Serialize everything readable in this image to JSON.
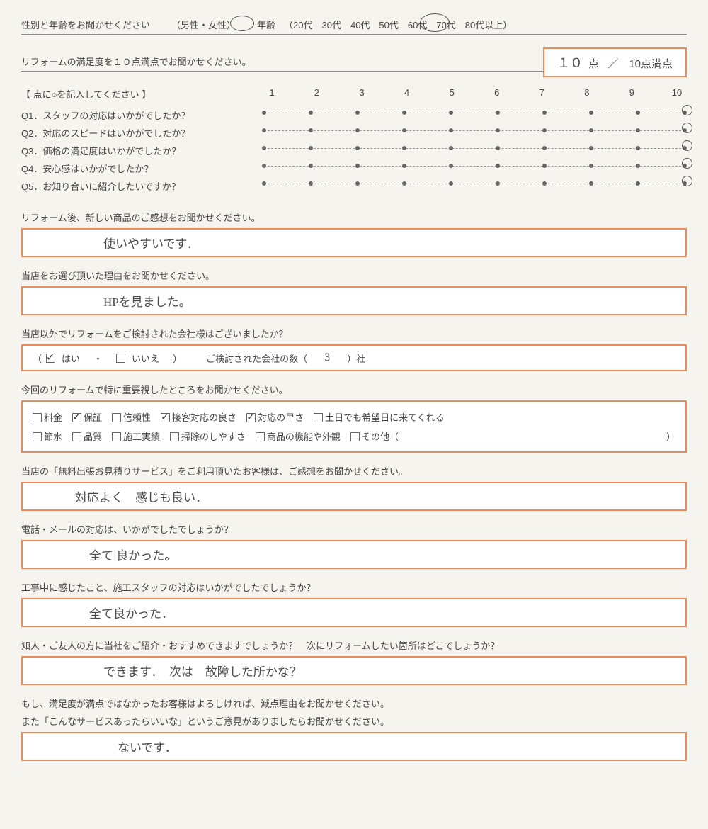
{
  "colors": {
    "accent": "#ed8a5a",
    "text": "#454545",
    "hw": "#4a4a4a",
    "bg": "#f5f4ef"
  },
  "demog": {
    "prompt": "性別と年齢をお聞かせください",
    "gender_label": "（男性・女性）",
    "age_label": "年齢",
    "age_options": "（20代　30代　40代　50代　60代　70代　80代以上）",
    "gender_selected": "女性",
    "age_selected": "50代"
  },
  "satisfaction": {
    "prompt": "リフォームの満足度を１０点満点でお聞かせください。",
    "score_hw": "１０",
    "score_unit": "点",
    "max_label": "／　10点満点"
  },
  "ratings": {
    "instruction": "【 点に○を記入してください 】",
    "scale": [
      "1",
      "2",
      "3",
      "4",
      "5",
      "6",
      "7",
      "8",
      "9",
      "10"
    ],
    "questions": [
      {
        "label": "Q1．スタッフの対応はいかがでしたか？",
        "value": 10
      },
      {
        "label": "Q2．対応のスピードはいかがでしたか？",
        "value": 10
      },
      {
        "label": "Q3．価格の満足度はいかがでしたか？",
        "value": 10
      },
      {
        "label": "Q4．安心感はいかがでしたか？",
        "value": 10
      },
      {
        "label": "Q5．お知り合いに紹介したいですか？",
        "value": 10
      }
    ]
  },
  "freetext": {
    "q_impression": "リフォーム後、新しい商品のご感想をお聞かせください。",
    "a_impression": "使いやすいです．",
    "q_reason": "当店をお選び頂いた理由をお聞かせください。",
    "a_reason": "HPを見ました。",
    "q_other_co": "当店以外でリフォームをご検討された会社様はございましたか？",
    "other_co_yes": "はい",
    "other_co_no": "いいえ",
    "other_co_count_label_pre": "ご検討された会社の数（",
    "other_co_count": "3",
    "other_co_count_label_post": "）社",
    "q_priority": "今回のリフォームで特に重要視したところをお聞かせください。",
    "priority_options_row1": [
      {
        "label": "料金",
        "on": false
      },
      {
        "label": "保証",
        "on": true
      },
      {
        "label": "信頼性",
        "on": false
      },
      {
        "label": "接客対応の良さ",
        "on": true
      },
      {
        "label": "対応の早さ",
        "on": true
      },
      {
        "label": "土日でも希望日に来てくれる",
        "on": false
      }
    ],
    "priority_options_row2": [
      {
        "label": "節水",
        "on": false
      },
      {
        "label": "品質",
        "on": false
      },
      {
        "label": "施工実績",
        "on": false
      },
      {
        "label": "掃除のしやすさ",
        "on": false
      },
      {
        "label": "商品の機能や外観",
        "on": false
      },
      {
        "label": "その他（",
        "on": false
      }
    ],
    "priority_other_close": "）",
    "q_estimate": "当店の「無料出張お見積りサービス」をご利用頂いたお客様は、ご感想をお聞かせください。",
    "a_estimate": "対応よく　感じも良い．",
    "q_phone": "電話・メールの対応は、いかがでしたでしょうか？",
    "a_phone": "全て 良かった。",
    "q_construction": "工事中に感じたこと、施工スタッフの対応はいかがでしたでしょうか？",
    "a_construction": "全て良かった．",
    "q_refer": "知人・ご友人の方に当社をご紹介・おすすめできますでしょうか？　次にリフォームしたい箇所はどこでしょうか？",
    "a_refer": "できます．　次は　故障した所かな？",
    "q_final1": "もし、満足度が満点ではなかったお客様はよろしければ、減点理由をお聞かせください。",
    "q_final2": "また「こんなサービスあったらいいな」というご意見がありましたらお聞かせください。",
    "a_final": "ないです．"
  }
}
